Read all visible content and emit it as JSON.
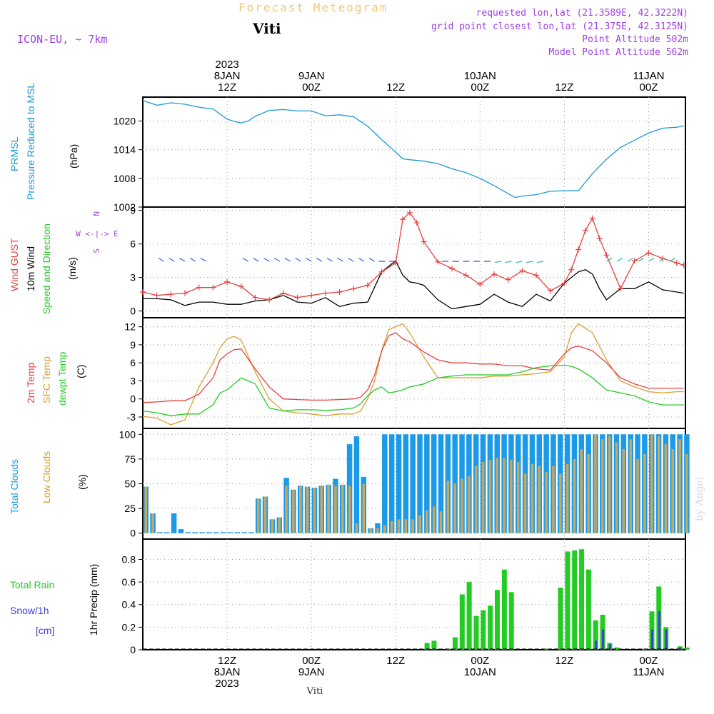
{
  "header": {
    "app_name": "Forecast Meteogram",
    "location": "Viti",
    "model": "ICON-EU, ~ 7km",
    "requested": "requested lon,lat (21.3589E, 42.3222N)",
    "grid_point": "grid point closest lon,lat (21.375E, 42.3125N)",
    "point_alt": "Point Altitude 502m",
    "model_alt": "Model Point Altitude 562m",
    "footer_location": "Viti",
    "watermark": "by Angel"
  },
  "time_axis": {
    "top": [
      {
        "lines": [
          "2023",
          "8JAN",
          "12Z"
        ],
        "hour": 12
      },
      {
        "lines": [
          "9JAN",
          "00Z"
        ],
        "hour": 24
      },
      {
        "lines": [
          "12Z"
        ],
        "hour": 36
      },
      {
        "lines": [
          "10JAN",
          "00Z"
        ],
        "hour": 48
      },
      {
        "lines": [
          "12Z"
        ],
        "hour": 60
      },
      {
        "lines": [
          "11JAN",
          "00Z"
        ],
        "hour": 72
      }
    ],
    "bottom": [
      {
        "lines": [
          "12Z",
          "8JAN",
          "2023"
        ],
        "hour": 12
      },
      {
        "lines": [
          "00Z",
          "9JAN"
        ],
        "hour": 24
      },
      {
        "lines": [
          "12Z"
        ],
        "hour": 36
      },
      {
        "lines": [
          "00Z",
          "10JAN"
        ],
        "hour": 48
      },
      {
        "lines": [
          "12Z"
        ],
        "hour": 60
      },
      {
        "lines": [
          "00Z",
          "11JAN"
        ],
        "hour": 72
      }
    ]
  },
  "panels": {
    "pressure": {
      "labels": [
        "PRMSL",
        "Pressure Reduced to MSL"
      ],
      "unit": "(hPa)",
      "ticks": [
        "1020",
        "1014",
        "1008",
        "1002"
      ]
    },
    "wind": {
      "labels": [
        "Wind GUST",
        "10m Wind",
        "Speed and Direction"
      ],
      "unit": "(m/s)",
      "ticks": [
        "9",
        "6",
        "3",
        "0"
      ],
      "compass": [
        "N",
        "W <-|-> E",
        "S"
      ]
    },
    "temp": {
      "labels": [
        "2m Temp",
        "SFC Temp",
        "dewpt Temp"
      ],
      "unit": "(C)",
      "ticks": [
        "12",
        "9",
        "6",
        "3",
        "0",
        "-3"
      ]
    },
    "clouds": {
      "labels": [
        "Total Clouds",
        "Low Clouds"
      ],
      "unit": "(%)",
      "ticks": [
        "100",
        "75",
        "50",
        "25",
        "0"
      ]
    },
    "precip": {
      "labels": [
        "Total  Rain",
        "Snow/1h",
        "[cm]"
      ],
      "unit": "1hr Precip (mm)",
      "ticks": [
        "0.8",
        "0.6",
        "0.4",
        "0.2",
        "0"
      ]
    }
  },
  "colors": {
    "pressure": "#1a9ad6",
    "gust": "#e84040",
    "wind": "#000000",
    "temp2m": "#e84040",
    "sfc": "#d8a030",
    "dewpt": "#22cc22",
    "total_clouds": "#1a9ae8",
    "low_clouds": "#c8a860",
    "rain": "#22cc22",
    "snow": "#4040d0",
    "label_purple": "#a040e0"
  },
  "chart_data": [
    {
      "type": "line",
      "name": "pressure",
      "ylabel": "(hPa)",
      "ylim": [
        1002,
        1025
      ],
      "x": [
        0,
        2,
        4,
        6,
        8,
        10,
        12,
        13,
        14,
        15,
        16,
        18,
        20,
        22,
        24,
        26,
        28,
        30,
        32,
        34,
        36,
        37,
        38,
        40,
        42,
        44,
        46,
        48,
        50,
        52,
        53,
        54,
        56,
        58,
        60,
        62,
        64,
        66,
        68,
        70,
        72,
        74,
        76,
        77
      ],
      "y": [
        1024.3,
        1023.3,
        1023.8,
        1023.5,
        1022.9,
        1022.5,
        1020.4,
        1019.9,
        1019.6,
        1020.0,
        1021.0,
        1022.2,
        1022.4,
        1022.1,
        1022.1,
        1021.1,
        1021.3,
        1020.9,
        1018.9,
        1016.1,
        1013.5,
        1012.1,
        1011.9,
        1011.6,
        1011.1,
        1010.0,
        1009.2,
        1008.0,
        1006.5,
        1004.8,
        1004.0,
        1004.3,
        1004.6,
        1005.3,
        1005.4,
        1005.4,
        1009.0,
        1012.0,
        1014.5,
        1016.0,
        1017.5,
        1018.5,
        1018.7,
        1019.0
      ]
    },
    {
      "type": "line",
      "name": "wind",
      "ylabel": "(m/s)",
      "ylim": [
        0,
        9
      ],
      "x": [
        0,
        2,
        4,
        6,
        8,
        10,
        12,
        14,
        16,
        18,
        20,
        22,
        24,
        26,
        28,
        30,
        32,
        34,
        36,
        37,
        38,
        39,
        40,
        42,
        44,
        46,
        48,
        50,
        52,
        54,
        56,
        58,
        60,
        61,
        62,
        63,
        64,
        65,
        66,
        68,
        70,
        72,
        74,
        76,
        77
      ],
      "gust": [
        1.7,
        1.4,
        1.5,
        1.6,
        2.1,
        2.1,
        2.6,
        2.2,
        1.2,
        1.0,
        1.6,
        1.2,
        1.4,
        1.6,
        1.7,
        2.0,
        2.3,
        3.5,
        4.3,
        8.2,
        8.8,
        7.9,
        6.2,
        4.4,
        3.8,
        3.2,
        2.4,
        3.3,
        2.8,
        3.6,
        3.2,
        1.8,
        2.5,
        3.7,
        5.5,
        7.2,
        8.3,
        6.5,
        5.0,
        2.0,
        4.5,
        5.2,
        4.7,
        4.3,
        4.1
      ],
      "speed": [
        1.1,
        1.1,
        1.0,
        0.5,
        0.8,
        0.8,
        0.6,
        0.6,
        0.9,
        1.0,
        1.4,
        0.8,
        0.7,
        1.2,
        0.4,
        0.7,
        0.8,
        3.5,
        4.5,
        3.2,
        2.6,
        2.5,
        2.3,
        1.0,
        0.2,
        0.4,
        0.6,
        1.5,
        0.8,
        0.4,
        1.5,
        0.9,
        2.5,
        3.0,
        3.5,
        3.7,
        3.3,
        2.0,
        1.0,
        2.0,
        2.0,
        2.6,
        1.9,
        1.7,
        1.6
      ]
    },
    {
      "type": "line",
      "name": "temperature",
      "ylabel": "(C)",
      "ylim": [
        -4,
        13
      ],
      "x": [
        0,
        2,
        4,
        6,
        8,
        10,
        11,
        12,
        13,
        14,
        16,
        18,
        20,
        22,
        24,
        26,
        28,
        30,
        31,
        32,
        33,
        34,
        35,
        36,
        37,
        38,
        40,
        42,
        44,
        46,
        48,
        50,
        52,
        54,
        56,
        58,
        60,
        61,
        62,
        64,
        66,
        68,
        70,
        72,
        74,
        76,
        77
      ],
      "t2m": [
        -0.6,
        -0.5,
        -0.3,
        -0.3,
        0.8,
        3.5,
        6.5,
        7.5,
        8.2,
        8.3,
        5.0,
        2.0,
        0.0,
        -0.1,
        -0.2,
        -0.2,
        -0.1,
        0.0,
        0.3,
        1.5,
        4.0,
        8.0,
        10.5,
        11.0,
        10.0,
        9.5,
        7.8,
        6.5,
        6.0,
        6.0,
        5.8,
        5.8,
        5.5,
        5.5,
        5.0,
        4.8,
        7.5,
        8.5,
        8.8,
        8.0,
        6.0,
        3.5,
        2.5,
        1.8,
        1.8,
        1.8,
        1.8
      ],
      "sfc": [
        -2.9,
        -3.2,
        -4.3,
        -3.5,
        2.0,
        6.0,
        8.5,
        10.0,
        10.4,
        9.8,
        4.5,
        0.0,
        -2.0,
        -2.3,
        -2.5,
        -2.8,
        -2.5,
        -2.5,
        -2.0,
        0.0,
        3.0,
        8.0,
        11.5,
        12.0,
        12.5,
        11.0,
        7.0,
        3.5,
        3.5,
        3.5,
        3.5,
        3.8,
        3.8,
        4.0,
        4.2,
        4.5,
        7.0,
        11.0,
        12.5,
        11.0,
        6.5,
        3.0,
        2.0,
        1.2,
        1.0,
        1.2,
        1.2
      ],
      "dewpt": [
        -2.0,
        -2.3,
        -2.8,
        -2.5,
        -2.5,
        -1.0,
        1.0,
        1.5,
        2.5,
        3.5,
        2.5,
        -1.5,
        -2.0,
        -1.8,
        -1.8,
        -1.9,
        -1.8,
        -1.5,
        -0.8,
        0.5,
        1.5,
        2.0,
        1.0,
        1.2,
        1.5,
        2.0,
        2.5,
        3.5,
        3.8,
        4.0,
        4.0,
        4.0,
        4.0,
        4.5,
        5.2,
        5.5,
        5.6,
        5.4,
        5.0,
        3.5,
        1.5,
        1.0,
        0.5,
        -0.5,
        -1.0,
        -1.0,
        -1.0
      ]
    },
    {
      "type": "bar",
      "name": "clouds",
      "ylabel": "(%)",
      "ylim": [
        0,
        105
      ],
      "start_hour": 0,
      "total": [
        47,
        20,
        1,
        1,
        20,
        4,
        1,
        1,
        1,
        1,
        1,
        1,
        1,
        1,
        1,
        1,
        35,
        37,
        14,
        16,
        56,
        44,
        48,
        47,
        46,
        48,
        49,
        55,
        49,
        90,
        98,
        57,
        5,
        10,
        100,
        100,
        100,
        100,
        100,
        100,
        100,
        100,
        100,
        100,
        100,
        100,
        100,
        100,
        100,
        100,
        100,
        100,
        100,
        100,
        100,
        100,
        100,
        100,
        100,
        100,
        100,
        100,
        100,
        100,
        100,
        100,
        100,
        100,
        100,
        100,
        100,
        100,
        100,
        100,
        100,
        100,
        100,
        100
      ],
      "low": [
        47,
        20,
        0,
        0,
        0,
        0,
        0,
        0,
        0,
        0,
        0,
        0,
        0,
        0,
        0,
        0,
        35,
        37,
        14,
        16,
        48,
        44,
        48,
        47,
        46,
        48,
        49,
        48,
        49,
        48,
        10,
        50,
        5,
        5,
        8,
        12,
        14,
        14,
        14,
        18,
        23,
        27,
        22,
        53,
        50,
        55,
        58,
        68,
        72,
        74,
        76,
        76,
        74,
        72,
        60,
        70,
        68,
        62,
        68,
        60,
        70,
        75,
        85,
        80,
        100,
        95,
        98,
        92,
        85,
        95,
        75,
        80,
        100,
        98,
        90,
        85,
        95,
        80
      ]
    },
    {
      "type": "bar",
      "name": "precip",
      "ylabel": "1hr Precip (mm)",
      "ylim": [
        0,
        0.95
      ],
      "start_hour": 0,
      "rain": [
        0,
        0,
        0,
        0,
        0,
        0,
        0,
        0,
        0,
        0,
        0,
        0,
        0,
        0,
        0,
        0,
        0,
        0,
        0,
        0,
        0,
        0,
        0,
        0,
        0,
        0,
        0,
        0,
        0,
        0,
        0,
        0,
        0,
        0,
        0,
        0,
        0,
        0,
        0,
        0,
        0.06,
        0.08,
        0,
        0.01,
        0.11,
        0.49,
        0.6,
        0.3,
        0.35,
        0.39,
        0.53,
        0.71,
        0.51,
        0,
        0,
        0,
        0,
        0.01,
        0,
        0.55,
        0.87,
        0.88,
        0.89,
        0.71,
        0.26,
        0.31,
        0.06,
        0.02,
        0,
        0,
        0,
        0.01,
        0.34,
        0.56,
        0.2,
        0,
        0.03,
        0.02
      ],
      "snow": [
        0,
        0,
        0,
        0,
        0,
        0,
        0,
        0,
        0,
        0,
        0,
        0,
        0,
        0,
        0,
        0,
        0,
        0,
        0,
        0,
        0,
        0,
        0,
        0,
        0,
        0,
        0,
        0,
        0,
        0,
        0,
        0,
        0,
        0,
        0,
        0,
        0,
        0,
        0,
        0,
        0,
        0,
        0,
        0,
        0,
        0,
        0,
        0,
        0,
        0,
        0,
        0,
        0,
        0,
        0,
        0,
        0,
        0,
        0,
        0,
        0,
        0,
        0,
        0,
        0.08,
        0.18,
        0.05,
        0,
        0,
        0,
        0,
        0,
        0.18,
        0.34,
        0.18,
        0,
        0.02,
        0
      ]
    }
  ]
}
